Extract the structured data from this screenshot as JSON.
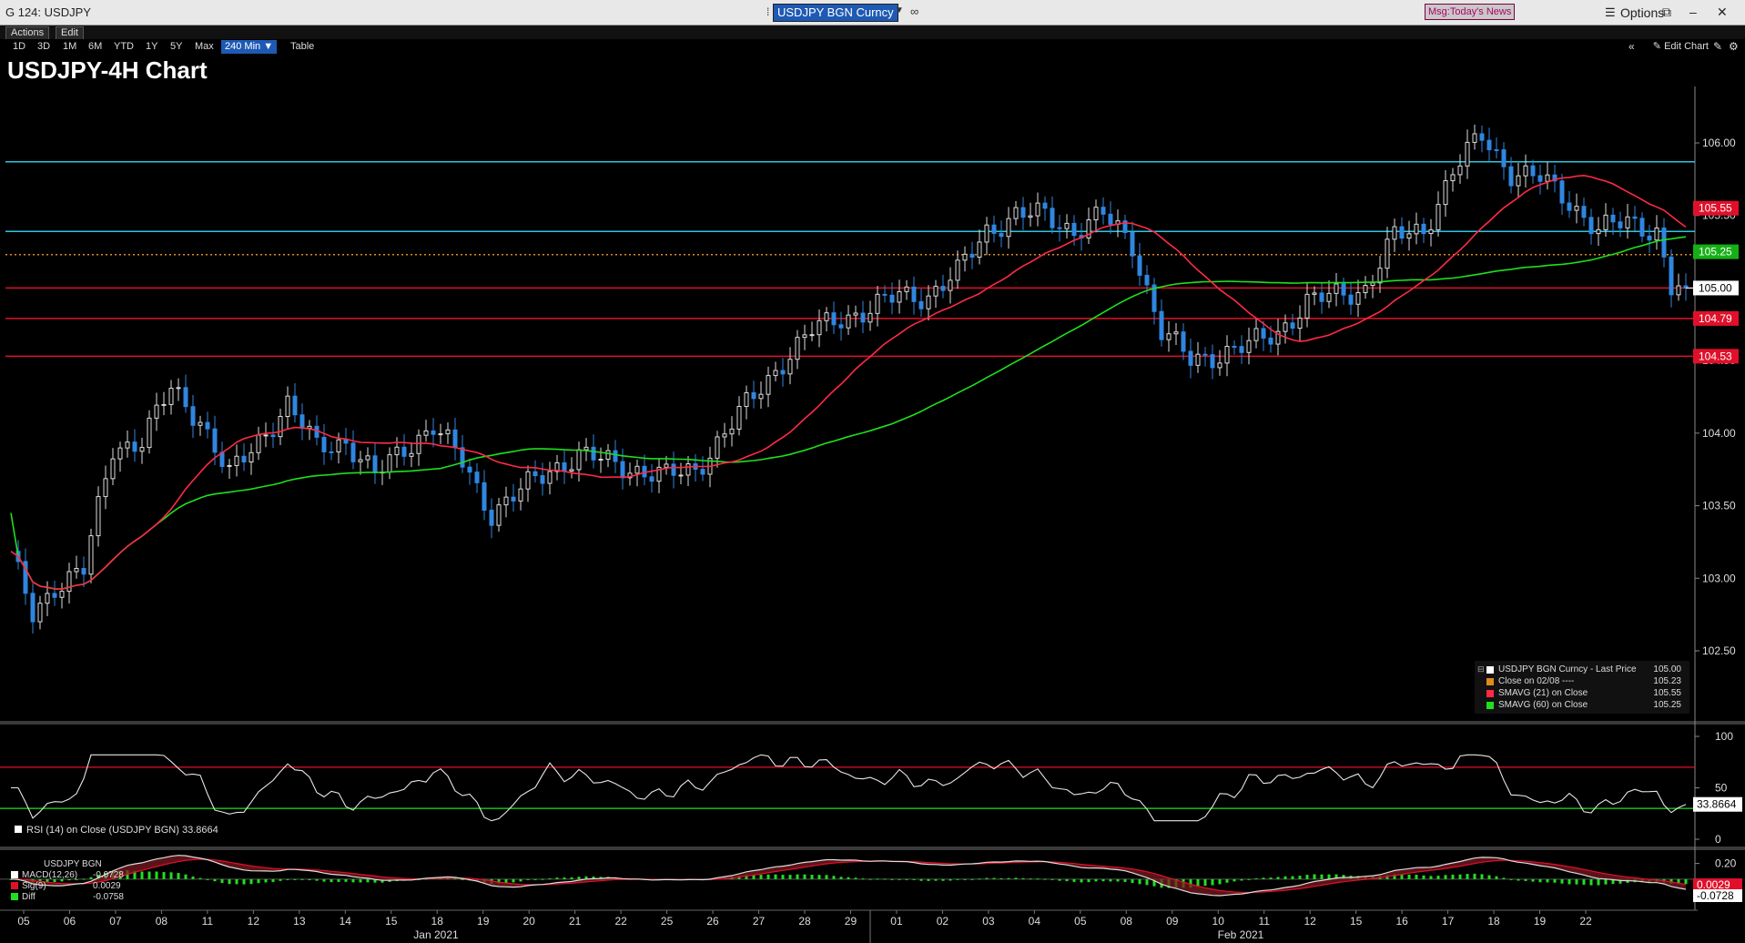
{
  "window": {
    "title": "G 124: USDJPY",
    "ticker_field": "USDJPY BGN Curncy",
    "msg_button": "Msg:Today's News",
    "options_label": "Options"
  },
  "menu": [
    "Actions",
    "Edit"
  ],
  "ranges": {
    "items": [
      "1D",
      "3D",
      "1M",
      "6M",
      "YTD",
      "1Y",
      "5Y",
      "Max"
    ],
    "selected": "240 Min",
    "table": "Table"
  },
  "edit_chart_label": "Edit Chart",
  "colors": {
    "up": "#dcdcdc",
    "down": "#2f86e0",
    "sma21": "#ff2a45",
    "sma60": "#1ee01e",
    "hline_cyan": "#2ec6e0",
    "hline_red": "#e0102a",
    "close_line": "#e08a1e"
  },
  "chart_data": [
    {
      "type": "candlestick",
      "title": "USDJPY-4H Chart",
      "ylim": [
        102.3,
        106.3
      ],
      "yticks": [
        102.5,
        103.0,
        103.5,
        104.0,
        104.5,
        105.0,
        105.5,
        106.0
      ],
      "ytick_labels": [
        "102.50",
        "103.00",
        "103.50",
        "104.00",
        "104.50",
        "105.00",
        "105.50",
        "106.00"
      ],
      "x_day_labels": [
        "05",
        "06",
        "07",
        "08",
        "11",
        "12",
        "13",
        "14",
        "15",
        "18",
        "19",
        "20",
        "21",
        "22",
        "25",
        "26",
        "27",
        "28",
        "29",
        "01",
        "02",
        "03",
        "04",
        "05",
        "08",
        "09",
        "10",
        "11",
        "12",
        "15",
        "16",
        "17",
        "18",
        "19",
        "22"
      ],
      "x_month_labels": [
        "Jan 2021",
        "Feb 2021"
      ],
      "horizontal_levels": [
        {
          "value": 105.87,
          "color": "cyan"
        },
        {
          "value": 105.39,
          "color": "cyan"
        },
        {
          "value": 105.0,
          "color": "red",
          "label": "105.00"
        },
        {
          "value": 104.79,
          "color": "red",
          "label": "104.79"
        },
        {
          "value": 104.53,
          "color": "red",
          "label": "104.53"
        },
        {
          "value": 105.23,
          "color": "orange",
          "style": "dotted"
        }
      ],
      "price_labels": [
        {
          "label": "105.55",
          "value": 105.55,
          "color": "red"
        },
        {
          "label": "105.25",
          "value": 105.25,
          "color": "green"
        },
        {
          "label": "105.00",
          "value": 105.0,
          "color": "white"
        },
        {
          "label": "104.79",
          "value": 104.79,
          "color": "red"
        },
        {
          "label": "104.53",
          "value": 104.53,
          "color": "red"
        }
      ],
      "close_anchors": [
        [
          0,
          103.15
        ],
        [
          3,
          102.75
        ],
        [
          6,
          102.95
        ],
        [
          10,
          103.05
        ],
        [
          14,
          103.9
        ],
        [
          18,
          103.95
        ],
        [
          22,
          104.3
        ],
        [
          26,
          104.1
        ],
        [
          30,
          103.7
        ],
        [
          34,
          103.95
        ],
        [
          38,
          104.2
        ],
        [
          42,
          103.9
        ],
        [
          46,
          103.95
        ],
        [
          50,
          103.7
        ],
        [
          54,
          103.9
        ],
        [
          58,
          104.05
        ],
        [
          62,
          103.8
        ],
        [
          66,
          103.45
        ],
        [
          70,
          103.6
        ],
        [
          74,
          103.75
        ],
        [
          78,
          103.85
        ],
        [
          82,
          103.8
        ],
        [
          86,
          103.75
        ],
        [
          90,
          103.7
        ],
        [
          94,
          103.75
        ],
        [
          98,
          104.0
        ],
        [
          102,
          104.25
        ],
        [
          106,
          104.5
        ],
        [
          110,
          104.7
        ],
        [
          114,
          104.8
        ],
        [
          118,
          104.85
        ],
        [
          122,
          104.95
        ],
        [
          126,
          104.95
        ],
        [
          130,
          105.1
        ],
        [
          134,
          105.4
        ],
        [
          138,
          105.5
        ],
        [
          142,
          105.5
        ],
        [
          146,
          105.4
        ],
        [
          150,
          105.5
        ],
        [
          154,
          105.3
        ],
        [
          158,
          104.7
        ],
        [
          162,
          104.5
        ],
        [
          166,
          104.55
        ],
        [
          170,
          104.6
        ],
        [
          174,
          104.7
        ],
        [
          178,
          104.9
        ],
        [
          182,
          104.95
        ],
        [
          186,
          105.0
        ],
        [
          190,
          105.35
        ],
        [
          194,
          105.4
        ],
        [
          198,
          105.8
        ],
        [
          202,
          106.05
        ],
        [
          206,
          105.8
        ],
        [
          210,
          105.75
        ],
        [
          214,
          105.6
        ],
        [
          218,
          105.4
        ],
        [
          222,
          105.45
        ],
        [
          226,
          105.4
        ],
        [
          228,
          105.0
        ],
        [
          230,
          105.0
        ]
      ],
      "series": [
        {
          "name": "USDJPY BGN Curncy - Last Price",
          "value": "105.00",
          "color": "#ffffff"
        },
        {
          "name": "Close on 02/08 ----",
          "value": "105.23",
          "color": "#e08a1e"
        },
        {
          "name": "SMAVG (21)  on Close",
          "value": "105.55",
          "color": "#ff2a45"
        },
        {
          "name": "SMAVG (60)  on Close",
          "value": "105.25",
          "color": "#1ee01e"
        }
      ]
    },
    {
      "type": "line",
      "name": "RSI (14)  on Close (USDJPY BGN)",
      "last_value": "33.8664",
      "ylim": [
        0,
        100
      ],
      "yticks": [
        0,
        50,
        100
      ],
      "ytick_labels": [
        "0",
        "50",
        "100"
      ],
      "bands": [
        30,
        70
      ]
    },
    {
      "type": "line",
      "name": "USDJPY BGN",
      "ylim": [
        -0.35,
        0.3
      ],
      "yticks": [
        0.2
      ],
      "ytick_labels": [
        "0.20"
      ],
      "series": [
        {
          "name": "MACD(12,26)",
          "value": "-0.0728",
          "color": "#ffffff"
        },
        {
          "name": "Sig(9)",
          "value": "0.0029",
          "color": "#e0102a"
        },
        {
          "name": "Diff",
          "value": "-0.0758",
          "color": "#1ee01e"
        }
      ],
      "last_labels": [
        "0.0029",
        "-0.0728"
      ]
    }
  ]
}
